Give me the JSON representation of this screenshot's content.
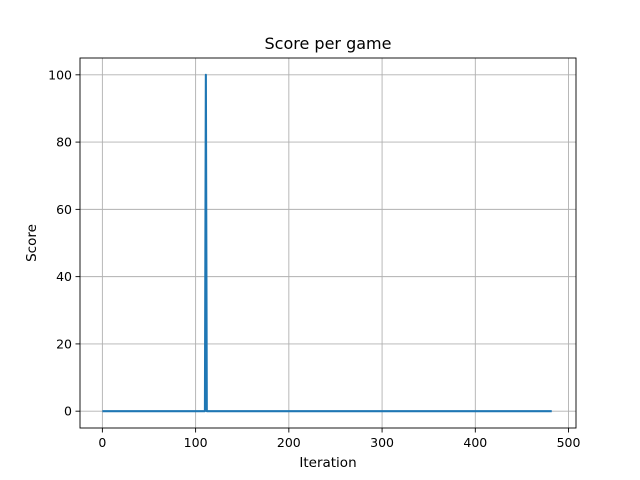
{
  "chart_data": {
    "type": "line",
    "title": "Score per game",
    "xlabel": "Iteration",
    "ylabel": "Score",
    "xlim": [
      -24,
      508
    ],
    "ylim": [
      -5,
      105
    ],
    "xticks": [
      0,
      100,
      200,
      300,
      400,
      500
    ],
    "yticks": [
      0,
      20,
      40,
      60,
      80,
      100
    ],
    "grid": true,
    "series": [
      {
        "color": "#1f77b4",
        "x": [
          0,
          110,
          111,
          112,
          482
        ],
        "y": [
          0,
          0,
          100,
          0,
          0
        ]
      }
    ]
  }
}
